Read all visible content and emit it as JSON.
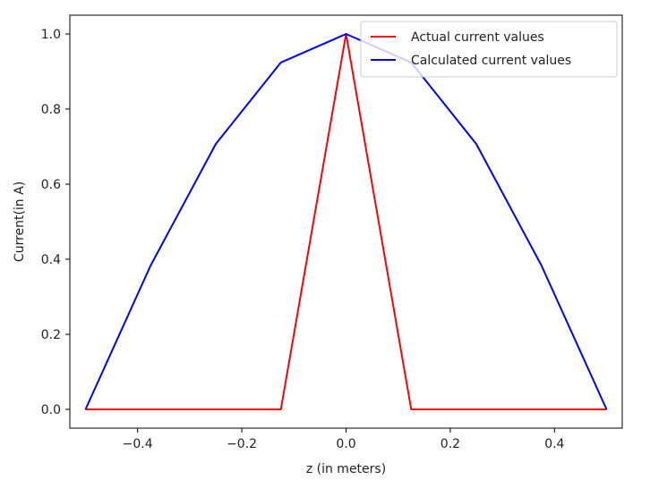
{
  "chart_data": {
    "type": "line",
    "title": "",
    "xlabel": "z (in meters)",
    "ylabel": "Current(in A)",
    "xlim": [
      -0.53,
      0.53
    ],
    "ylim": [
      -0.05,
      1.05
    ],
    "xticks": [
      -0.4,
      -0.2,
      0.0,
      0.2,
      0.4
    ],
    "xtick_labels": [
      "−0.4",
      "−0.2",
      "0.0",
      "0.2",
      "0.4"
    ],
    "yticks": [
      0.0,
      0.2,
      0.4,
      0.6,
      0.8,
      1.0
    ],
    "ytick_labels": [
      "0.0",
      "0.2",
      "0.4",
      "0.6",
      "0.8",
      "1.0"
    ],
    "grid": false,
    "legend_position": "top-right",
    "series": [
      {
        "name": "Actual current values",
        "color": "#ff0000",
        "x": [
          -0.5,
          -0.375,
          -0.25,
          -0.125,
          0.0,
          0.125,
          0.25,
          0.375,
          0.5
        ],
        "y": [
          0.0,
          0.0,
          0.0,
          0.0,
          1.0,
          0.0,
          0.0,
          0.0,
          0.0
        ]
      },
      {
        "name": "Calculated current values",
        "color": "#0000ff",
        "x": [
          -0.5,
          -0.375,
          -0.25,
          -0.125,
          0.0,
          0.125,
          0.25,
          0.375,
          0.5
        ],
        "y": [
          0.0,
          0.383,
          0.707,
          0.924,
          1.0,
          0.924,
          0.707,
          0.383,
          0.0
        ]
      }
    ]
  }
}
